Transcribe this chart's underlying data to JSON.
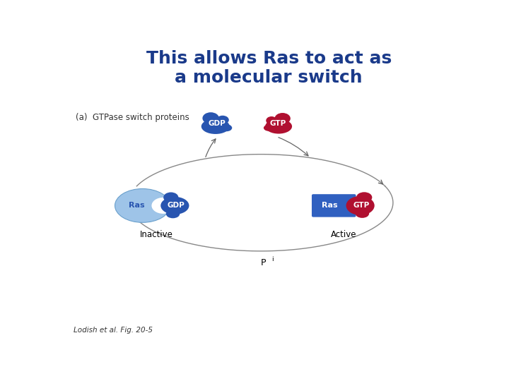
{
  "title_line1": "This allows Ras to act as",
  "title_line2": "a molecular switch",
  "title_color": "#1a3a8a",
  "title_fontsize": 18,
  "subtitle": "(a)  GTPase switch proteins",
  "subtitle_fontsize": 8.5,
  "subtitle_color": "#333333",
  "footnote": "Lodish et al. Fig. 20-5",
  "footnote_fontsize": 7.5,
  "footnote_color": "#333333",
  "ras_inactive_color": "#9ec4e8",
  "ras_inactive_border": "#6aa0cc",
  "ras_active_color": "#3060c0",
  "gdp_color": "#2855b0",
  "gtp_color": "#b01030",
  "gdp_label": "GDP",
  "gtp_label": "GTP",
  "ras_label": "Ras",
  "inactive_label": "Inactive",
  "active_label": "Active",
  "pi_label": "P",
  "arrow_color": "#666666",
  "ellipse_color": "#888888",
  "bg_color": "#ffffff"
}
